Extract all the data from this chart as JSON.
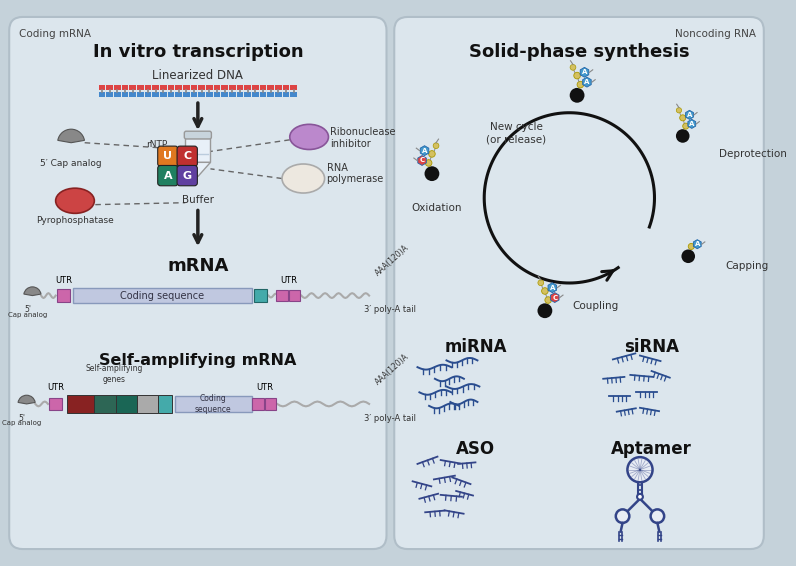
{
  "bg_color": "#c5d2da",
  "left_panel_color": "#dce6ed",
  "right_panel_color": "#dce6ed",
  "left_label": "Coding mRNA",
  "right_label": "Noncoding RNA",
  "left_title": "In vitro transcription",
  "right_title": "Solid-phase synthesis",
  "left_subtitle": "Linearized DNA",
  "dna_color_top": "#dd4444",
  "dna_color_bottom": "#4488cc",
  "buffer_label": "Buffer",
  "rntp_label": "rNTP",
  "ribo_label": "Ribonuclease\ninhibitor",
  "rna_pol_label": "RNA\npolymerase",
  "pyro_label": "Pyrophosphatase",
  "cap_label": "5′ Cap analog",
  "mrna_label": "mRNA",
  "sa_label": "Self-amplifying mRNA",
  "coding_seq_label": "Coding sequence",
  "utr_label": "UTR",
  "poly_a_label": "3′ poly-A tail",
  "aaa_label": "AAA(120)A",
  "self_amp_genes_label": "Self-amplifying\ngenes",
  "coding_seq2_label": "Coding\nsequence",
  "cycle_labels": [
    "New cycle\n(or release)",
    "Deprotection",
    "Capping",
    "Coupling",
    "Oxidation"
  ],
  "noncoding_labels": [
    "miRNA",
    "siRNA",
    "ASO",
    "Aptamer"
  ],
  "nucleotide_colors": {
    "U": "#e07820",
    "C": "#c03030",
    "A": "#208060",
    "G": "#6040a0"
  },
  "bead_color": "#111111",
  "phosphate_color": "#d4c060",
  "nucleoside_color": "#4499cc",
  "nucleoside_red": "#dd4444",
  "oligonucleotide_color": "#2a4d8f",
  "aso_color": "#334488"
}
